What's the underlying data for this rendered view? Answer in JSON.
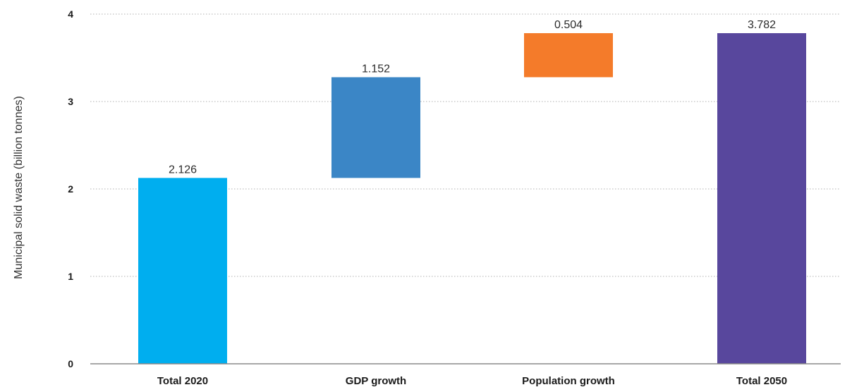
{
  "chart_data": {
    "type": "bar",
    "subtype": "waterfall",
    "ylabel": "Municipal solid waste (billion tonnes)",
    "xlabel": "",
    "ylim": [
      0,
      4
    ],
    "yticks": [
      "0",
      "1",
      "2",
      "3",
      "4"
    ],
    "grid": true,
    "categories": [
      "Total 2020",
      "GDP growth",
      "Population growth",
      "Total 2050"
    ],
    "bars": [
      {
        "category": "Total 2020",
        "label": "2.126",
        "base": 0,
        "value": 2.126,
        "color": "#00aeef"
      },
      {
        "category": "GDP growth",
        "label": "1.152",
        "base": 2.126,
        "value": 1.152,
        "color": "#3b86c6"
      },
      {
        "category": "Population growth",
        "label": "0.504",
        "base": 3.278,
        "value": 0.504,
        "color": "#f47b2a"
      },
      {
        "category": "Total 2050",
        "label": "3.782",
        "base": 0,
        "value": 3.782,
        "color": "#58479d"
      }
    ]
  }
}
